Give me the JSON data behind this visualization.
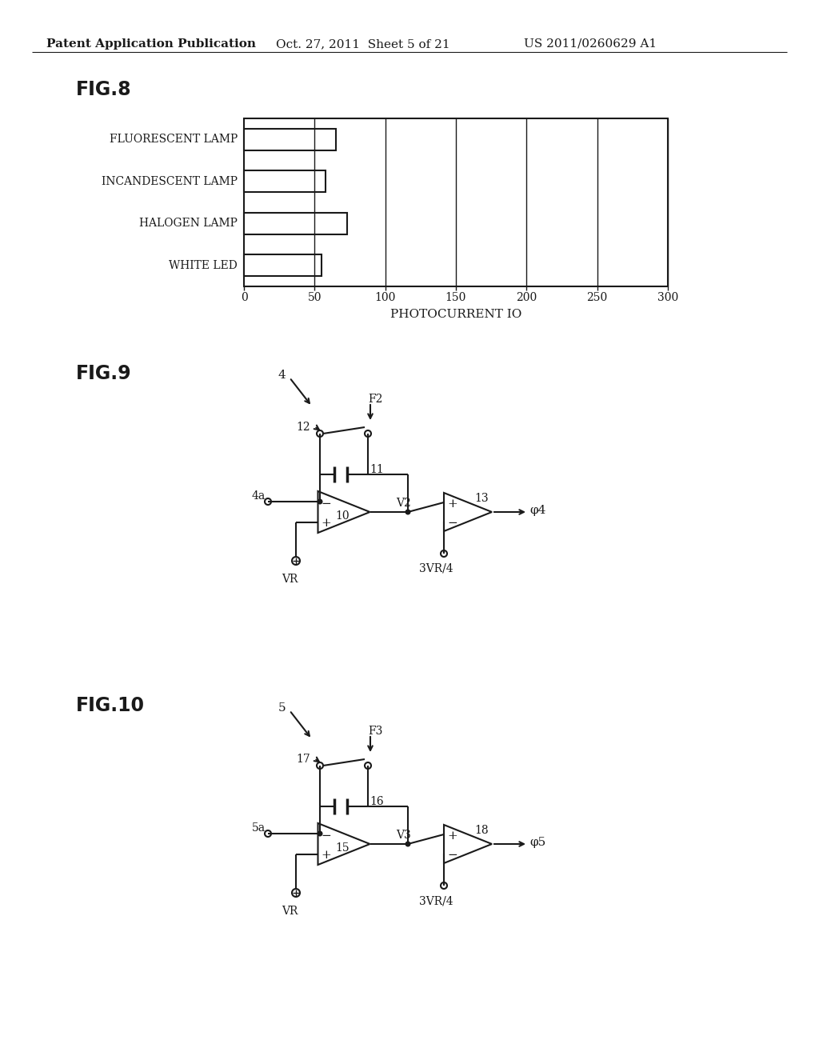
{
  "bg_color": "#ffffff",
  "header_left": "Patent Application Publication",
  "header_center": "Oct. 27, 2011  Sheet 5 of 21",
  "header_right": "US 2011/0260629 A1",
  "fig8_label": "FIG.8",
  "fig8_categories": [
    "FLUORESCENT LAMP",
    "INCANDESCENT LAMP",
    "HALOGEN LAMP",
    "WHITE LED"
  ],
  "fig8_values": [
    65,
    58,
    73,
    55
  ],
  "fig8_xlim": [
    0,
    300
  ],
  "fig8_xticks": [
    0,
    50,
    100,
    150,
    200,
    250,
    300
  ],
  "fig8_xlabel": "PHOTOCURRENT IO",
  "fig9_label": "FIG.9",
  "fig10_label": "FIG.10",
  "line_color": "#1a1a1a",
  "text_color": "#1a1a1a",
  "bar_color": "#ffffff",
  "bar_edge_color": "#1a1a1a"
}
